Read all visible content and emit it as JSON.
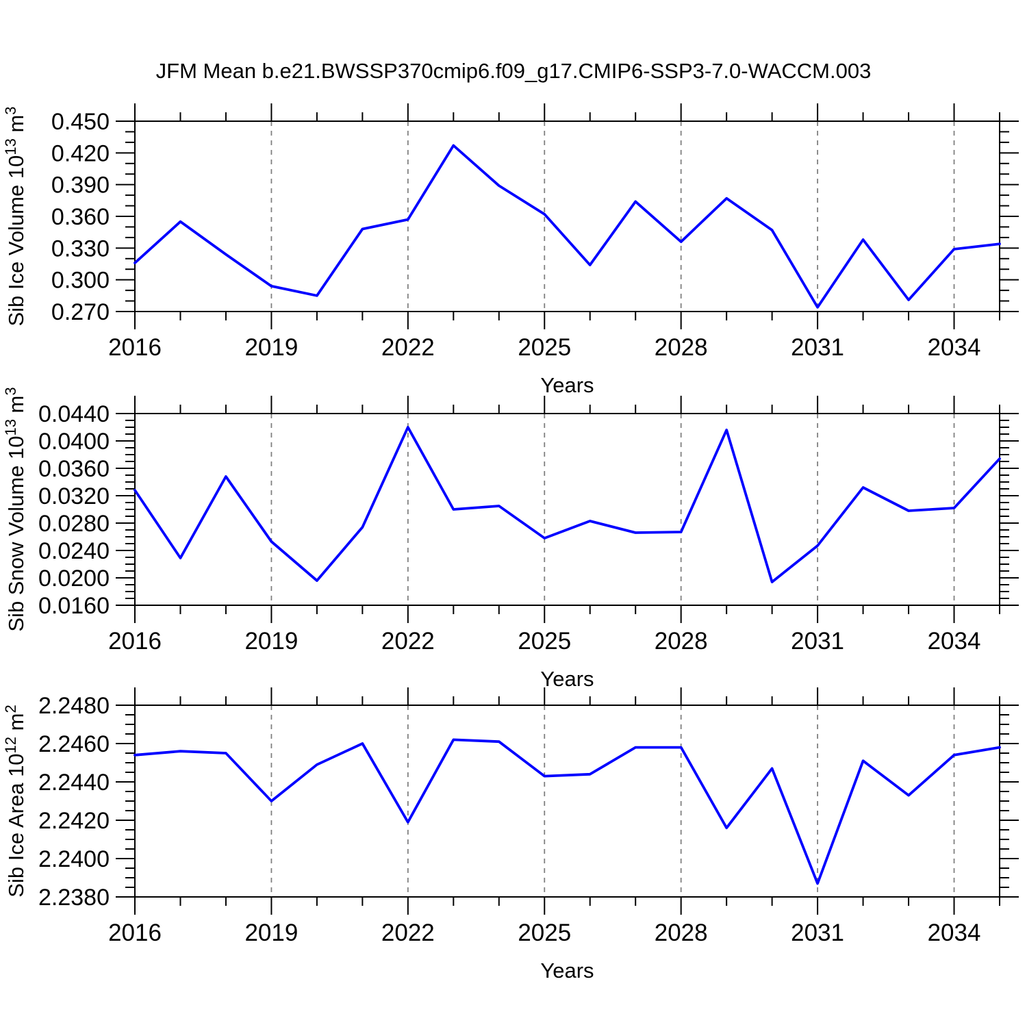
{
  "title": "JFM Mean b.e21.BWSSP370cmip6.f09_g17.CMIP6-SSP3-7.0-WACCM.003",
  "style": {
    "line_color": "#0000ff",
    "grid_color": "#808080",
    "axis_color": "#000000",
    "background": "#ffffff"
  },
  "x_axis": {
    "label": "Years",
    "start": 2016,
    "end": 2035,
    "major_step": 3,
    "minor_step": 1,
    "major_tick_labels": [
      "2016",
      "2019",
      "2022",
      "2025",
      "2028",
      "2031",
      "2034"
    ],
    "gridline_years": [
      2019,
      2022,
      2025,
      2028,
      2031,
      2034
    ]
  },
  "chart_data": [
    {
      "type": "line",
      "name": "sib-ice-volume",
      "ylabel": "Sib Ice Volume 10^13 m^3",
      "xlabel": "Years",
      "ylim": [
        0.27,
        0.45
      ],
      "ytick_major_step": 0.03,
      "ytick_minor_step": 0.01,
      "ytick_labels": [
        "0.270",
        "0.300",
        "0.330",
        "0.360",
        "0.390",
        "0.420",
        "0.450"
      ],
      "grid": "vertical-dashed",
      "legend": "none",
      "x": [
        2016,
        2017,
        2018,
        2019,
        2020,
        2021,
        2022,
        2023,
        2024,
        2025,
        2026,
        2027,
        2028,
        2029,
        2030,
        2031,
        2032,
        2033,
        2034,
        2035
      ],
      "values": [
        0.316,
        0.355,
        0.324,
        0.294,
        0.285,
        0.348,
        0.357,
        0.427,
        0.389,
        0.362,
        0.314,
        0.374,
        0.336,
        0.377,
        0.347,
        0.274,
        0.338,
        0.281,
        0.329,
        0.334
      ]
    },
    {
      "type": "line",
      "name": "sib-snow-volume",
      "ylabel": "Sib Snow Volume 10^13 m^3",
      "xlabel": "Years",
      "ylim": [
        0.016,
        0.044
      ],
      "ytick_major_step": 0.004,
      "ytick_minor_step": 0.001,
      "ytick_labels": [
        "0.0160",
        "0.0200",
        "0.0240",
        "0.0280",
        "0.0320",
        "0.0360",
        "0.0400",
        "0.0440"
      ],
      "grid": "vertical-dashed",
      "legend": "none",
      "x": [
        2016,
        2017,
        2018,
        2019,
        2020,
        2021,
        2022,
        2023,
        2024,
        2025,
        2026,
        2027,
        2028,
        2029,
        2030,
        2031,
        2032,
        2033,
        2034,
        2035
      ],
      "values": [
        0.0328,
        0.0229,
        0.0348,
        0.0253,
        0.0196,
        0.0274,
        0.042,
        0.03,
        0.0305,
        0.0258,
        0.0283,
        0.0266,
        0.0267,
        0.0416,
        0.0194,
        0.0247,
        0.0332,
        0.0298,
        0.0302,
        0.0374
      ]
    },
    {
      "type": "line",
      "name": "sib-ice-area",
      "ylabel": "Sib Ice Area 10^12 m^2",
      "xlabel": "Years",
      "ylim": [
        2.238,
        2.248
      ],
      "ytick_major_step": 0.002,
      "ytick_minor_step": 0.0005,
      "ytick_labels": [
        "2.2380",
        "2.2400",
        "2.2420",
        "2.2440",
        "2.2460",
        "2.2480"
      ],
      "grid": "vertical-dashed",
      "legend": "none",
      "x": [
        2016,
        2017,
        2018,
        2019,
        2020,
        2021,
        2022,
        2023,
        2024,
        2025,
        2026,
        2027,
        2028,
        2029,
        2030,
        2031,
        2032,
        2033,
        2034,
        2035
      ],
      "values": [
        2.2454,
        2.2456,
        2.2455,
        2.243,
        2.2449,
        2.246,
        2.2419,
        2.2462,
        2.2461,
        2.2443,
        2.2444,
        2.2458,
        2.2458,
        2.2416,
        2.2447,
        2.2387,
        2.2451,
        2.2433,
        2.2454,
        2.2458
      ]
    }
  ]
}
